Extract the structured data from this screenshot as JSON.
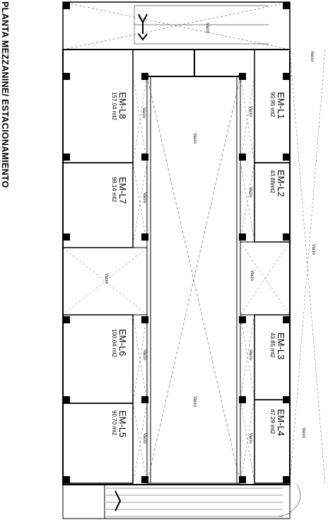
{
  "title": "PLANTA MEZZANINE/ ESTACIONAMIENTO",
  "void_label": "Vacío",
  "void_label_alt": "Vacio",
  "units": [
    {
      "code": "EM-L1",
      "area": "90.95 mt2"
    },
    {
      "code": "EM-L2",
      "area": "43.88mt2"
    },
    {
      "code": "EM-L3",
      "area": "43.85 mt2"
    },
    {
      "code": "EM-L4",
      "area": "47.29 mt2"
    },
    {
      "code": "EM-L5",
      "area": "90.70 mt2"
    },
    {
      "code": "EM-L6",
      "area": "100.04 mt2"
    },
    {
      "code": "EM-L7",
      "area": "98.14 mt2"
    },
    {
      "code": "EM-L8",
      "area": "157.04 mt2"
    }
  ],
  "colors": {
    "line": "#000000",
    "dashed": "#555555",
    "column": "#000000"
  }
}
